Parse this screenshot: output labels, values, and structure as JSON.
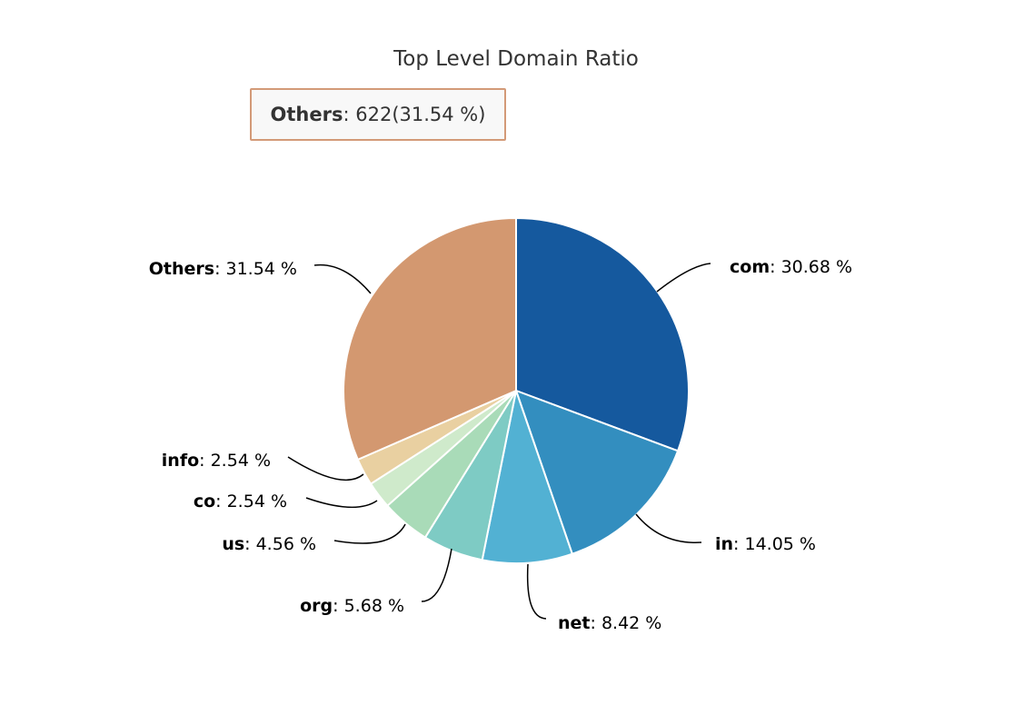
{
  "chart_data": {
    "type": "pie",
    "title": "Top Level Domain Ratio",
    "slices": [
      {
        "name": "com",
        "percent": 30.68,
        "percent_label": "30.68 %",
        "color": "#15599e"
      },
      {
        "name": "in",
        "percent": 14.05,
        "percent_label": "14.05 %",
        "color": "#338ebf"
      },
      {
        "name": "net",
        "percent": 8.42,
        "percent_label": "8.42 %",
        "color": "#52b1d3"
      },
      {
        "name": "org",
        "percent": 5.68,
        "percent_label": "5.68 %",
        "color": "#7ecbc4"
      },
      {
        "name": "us",
        "percent": 4.56,
        "percent_label": "4.56 %",
        "color": "#a9dbb8"
      },
      {
        "name": "co",
        "percent": 2.54,
        "percent_label": "2.54 %",
        "color": "#cfeacb"
      },
      {
        "name": "info",
        "percent": 2.54,
        "percent_label": "2.54 %",
        "color": "#e9d0a1"
      },
      {
        "name": "Others",
        "percent": 31.54,
        "percent_label": "31.54 %",
        "color": "#d39870"
      }
    ],
    "tooltip": {
      "name": "Others",
      "value_text": ": 622(31.54 %)"
    }
  }
}
